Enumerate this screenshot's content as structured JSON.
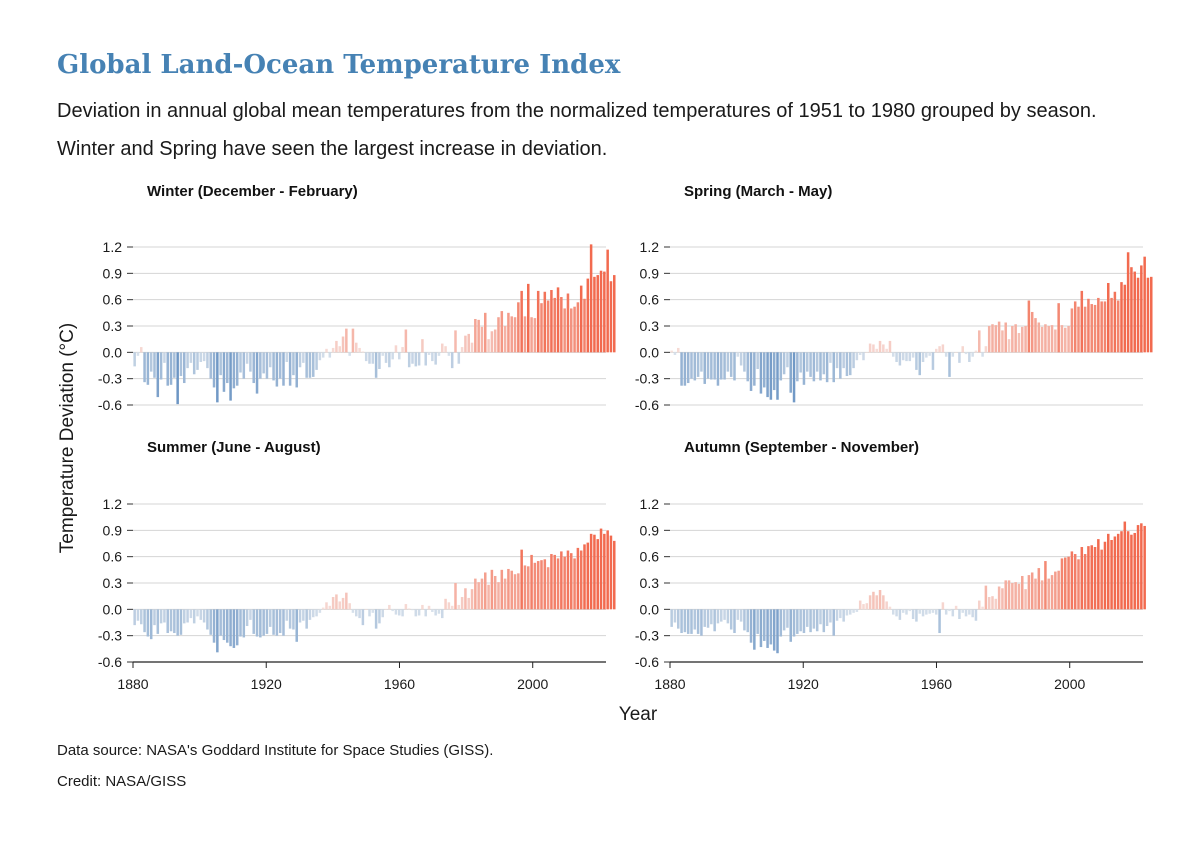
{
  "title": "Global Land-Ocean Temperature Index",
  "subtitle": "Deviation in annual global mean temperatures from the normalized temperatures of 1951 to 1980 grouped by season. Winter and Spring have seen the largest increase in deviation.",
  "source": "Data source: NASA's Goddard Institute for Space Studies (GISS).",
  "credit": "Credit: NASA/GISS",
  "colors": {
    "cold": "#4f81b9",
    "warm": "#f26a4f",
    "neutral": "#f7f7f7",
    "grid": "#d4d4d4",
    "title": "#4682b4"
  },
  "chart_data": {
    "type": "bar",
    "xlabel": "Year",
    "ylabel": "Temperature Deviation (°C)",
    "xlim": [
      1880,
      2022
    ],
    "ylim": [
      -0.6,
      1.2
    ],
    "yticks": [
      "1.2",
      "0.9",
      "0.6",
      "0.3",
      "0.0",
      "-0.3",
      "-0.6"
    ],
    "xticks": [
      "1880",
      "1920",
      "1960",
      "2000"
    ],
    "grid": true,
    "start_year": 1880,
    "panels": [
      {
        "name": "Winter (December - February)",
        "values": [
          -0.16,
          -0.04,
          0.06,
          -0.34,
          -0.37,
          -0.22,
          -0.29,
          -0.51,
          -0.31,
          -0.12,
          -0.38,
          -0.37,
          -0.29,
          -0.59,
          -0.27,
          -0.35,
          -0.18,
          -0.12,
          -0.25,
          -0.2,
          -0.11,
          -0.1,
          -0.18,
          -0.3,
          -0.4,
          -0.57,
          -0.26,
          -0.45,
          -0.35,
          -0.55,
          -0.41,
          -0.38,
          -0.23,
          -0.3,
          -0.13,
          -0.22,
          -0.35,
          -0.47,
          -0.3,
          -0.24,
          -0.3,
          -0.17,
          -0.32,
          -0.39,
          -0.3,
          -0.38,
          -0.11,
          -0.38,
          -0.26,
          -0.4,
          -0.17,
          -0.12,
          -0.29,
          -0.29,
          -0.28,
          -0.2,
          -0.09,
          -0.06,
          0.04,
          -0.06,
          0.05,
          0.13,
          0.07,
          0.18,
          0.27,
          -0.04,
          0.27,
          0.11,
          0.05,
          0.01,
          -0.1,
          -0.13,
          -0.13,
          -0.29,
          -0.19,
          -0.04,
          -0.12,
          -0.17,
          -0.08,
          0.08,
          -0.08,
          0.06,
          0.26,
          -0.17,
          -0.13,
          -0.16,
          -0.15,
          0.15,
          -0.15,
          -0.03,
          -0.1,
          -0.14,
          -0.04,
          0.1,
          0.07,
          -0.04,
          -0.18,
          0.25,
          -0.13,
          0.06,
          0.19,
          0.21,
          0.11,
          0.38,
          0.37,
          0.29,
          0.45,
          0.15,
          0.24,
          0.26,
          0.4,
          0.47,
          0.3,
          0.45,
          0.41,
          0.4,
          0.57,
          0.7,
          0.41,
          0.78,
          0.4,
          0.39,
          0.7,
          0.56,
          0.69,
          0.59,
          0.71,
          0.62,
          0.74,
          0.63,
          0.5,
          0.67,
          0.5,
          0.52,
          0.57,
          0.76,
          0.61,
          0.84,
          1.23,
          0.86,
          0.88,
          0.93,
          0.92,
          1.17,
          0.81,
          0.88
        ]
      },
      {
        "name": "Spring (March - May)",
        "values": [
          0.02,
          -0.03,
          0.05,
          -0.38,
          -0.38,
          -0.35,
          -0.3,
          -0.32,
          -0.28,
          -0.22,
          -0.36,
          -0.3,
          -0.31,
          -0.31,
          -0.38,
          -0.31,
          -0.31,
          -0.22,
          -0.28,
          -0.32,
          -0.05,
          -0.15,
          -0.22,
          -0.33,
          -0.44,
          -0.38,
          -0.19,
          -0.47,
          -0.4,
          -0.51,
          -0.54,
          -0.43,
          -0.54,
          -0.32,
          -0.25,
          -0.17,
          -0.46,
          -0.57,
          -0.33,
          -0.23,
          -0.37,
          -0.22,
          -0.28,
          -0.33,
          -0.22,
          -0.32,
          -0.25,
          -0.34,
          -0.12,
          -0.34,
          -0.18,
          -0.3,
          -0.18,
          -0.27,
          -0.26,
          -0.18,
          -0.09,
          -0.03,
          -0.09,
          0.0,
          0.1,
          0.09,
          0.04,
          0.13,
          0.09,
          0.04,
          0.13,
          -0.05,
          -0.11,
          -0.15,
          -0.09,
          -0.1,
          -0.1,
          -0.06,
          -0.2,
          -0.26,
          -0.11,
          -0.06,
          -0.04,
          -0.2,
          0.04,
          0.07,
          0.09,
          -0.05,
          -0.28,
          -0.05,
          0.0,
          -0.12,
          0.07,
          -0.02,
          -0.11,
          -0.05,
          0.02,
          0.25,
          -0.05,
          0.07,
          0.3,
          0.32,
          0.31,
          0.35,
          0.25,
          0.34,
          0.15,
          0.3,
          0.32,
          0.22,
          0.29,
          0.3,
          0.59,
          0.46,
          0.39,
          0.34,
          0.29,
          0.32,
          0.3,
          0.31,
          0.26,
          0.56,
          0.31,
          0.28,
          0.3,
          0.5,
          0.58,
          0.52,
          0.7,
          0.52,
          0.61,
          0.55,
          0.54,
          0.62,
          0.58,
          0.58,
          0.79,
          0.62,
          0.69,
          0.59,
          0.8,
          0.77,
          1.14,
          0.97,
          0.92,
          0.85,
          0.99,
          1.09,
          0.85,
          0.86
        ]
      },
      {
        "name": "Summer (June - August)",
        "values": [
          -0.18,
          -0.13,
          -0.17,
          -0.26,
          -0.31,
          -0.34,
          -0.18,
          -0.28,
          -0.16,
          -0.15,
          -0.27,
          -0.25,
          -0.27,
          -0.3,
          -0.29,
          -0.16,
          -0.15,
          -0.1,
          -0.16,
          -0.08,
          -0.12,
          -0.15,
          -0.23,
          -0.29,
          -0.38,
          -0.49,
          -0.3,
          -0.35,
          -0.38,
          -0.42,
          -0.44,
          -0.41,
          -0.31,
          -0.32,
          -0.19,
          -0.12,
          -0.28,
          -0.31,
          -0.32,
          -0.3,
          -0.28,
          -0.2,
          -0.29,
          -0.3,
          -0.27,
          -0.3,
          -0.13,
          -0.22,
          -0.23,
          -0.37,
          -0.15,
          -0.13,
          -0.22,
          -0.12,
          -0.09,
          -0.08,
          -0.04,
          0.02,
          0.08,
          0.04,
          0.14,
          0.17,
          0.09,
          0.13,
          0.19,
          0.07,
          -0.04,
          -0.08,
          -0.1,
          -0.18,
          0.0,
          -0.08,
          -0.04,
          -0.22,
          -0.16,
          -0.09,
          0.0,
          0.05,
          -0.02,
          -0.06,
          -0.07,
          -0.08,
          0.06,
          0.01,
          -0.01,
          -0.08,
          -0.07,
          0.05,
          -0.08,
          0.04,
          -0.03,
          -0.07,
          -0.05,
          -0.1,
          0.12,
          0.08,
          0.04,
          0.3,
          0.05,
          0.14,
          0.24,
          0.13,
          0.23,
          0.35,
          0.31,
          0.35,
          0.42,
          0.28,
          0.45,
          0.38,
          0.31,
          0.45,
          0.35,
          0.46,
          0.44,
          0.4,
          0.41,
          0.68,
          0.5,
          0.49,
          0.62,
          0.53,
          0.55,
          0.56,
          0.57,
          0.48,
          0.63,
          0.62,
          0.58,
          0.66,
          0.6,
          0.67,
          0.64,
          0.58,
          0.7,
          0.67,
          0.74,
          0.76,
          0.86,
          0.85,
          0.8,
          0.92,
          0.86,
          0.9,
          0.84,
          0.78
        ]
      },
      {
        "name": "Autumn (September - November)",
        "values": [
          -0.2,
          -0.15,
          -0.22,
          -0.27,
          -0.26,
          -0.28,
          -0.28,
          -0.23,
          -0.28,
          -0.3,
          -0.2,
          -0.21,
          -0.17,
          -0.25,
          -0.16,
          -0.14,
          -0.12,
          -0.16,
          -0.23,
          -0.27,
          -0.12,
          -0.14,
          -0.24,
          -0.26,
          -0.38,
          -0.46,
          -0.28,
          -0.43,
          -0.36,
          -0.44,
          -0.4,
          -0.47,
          -0.5,
          -0.31,
          -0.24,
          -0.21,
          -0.37,
          -0.31,
          -0.28,
          -0.25,
          -0.27,
          -0.2,
          -0.26,
          -0.22,
          -0.25,
          -0.17,
          -0.26,
          -0.19,
          -0.15,
          -0.3,
          -0.13,
          -0.1,
          -0.14,
          -0.07,
          -0.06,
          -0.04,
          -0.03,
          0.1,
          0.06,
          0.07,
          0.16,
          0.2,
          0.16,
          0.22,
          0.16,
          0.09,
          0.03,
          -0.06,
          -0.08,
          -0.12,
          -0.04,
          -0.06,
          -0.02,
          -0.11,
          -0.14,
          -0.05,
          -0.08,
          -0.06,
          -0.05,
          -0.04,
          -0.06,
          -0.27,
          0.08,
          -0.06,
          -0.02,
          -0.08,
          0.04,
          -0.11,
          -0.04,
          -0.08,
          -0.06,
          -0.09,
          -0.13,
          0.1,
          0.03,
          0.27,
          0.14,
          0.15,
          0.12,
          0.26,
          0.24,
          0.33,
          0.33,
          0.3,
          0.31,
          0.29,
          0.38,
          0.23,
          0.39,
          0.42,
          0.35,
          0.47,
          0.33,
          0.55,
          0.35,
          0.39,
          0.43,
          0.44,
          0.58,
          0.59,
          0.6,
          0.66,
          0.63,
          0.57,
          0.71,
          0.63,
          0.72,
          0.73,
          0.71,
          0.8,
          0.68,
          0.77,
          0.86,
          0.79,
          0.83,
          0.86,
          0.89,
          1.0,
          0.89,
          0.85,
          0.87,
          0.96,
          0.98,
          0.95
        ]
      }
    ]
  }
}
